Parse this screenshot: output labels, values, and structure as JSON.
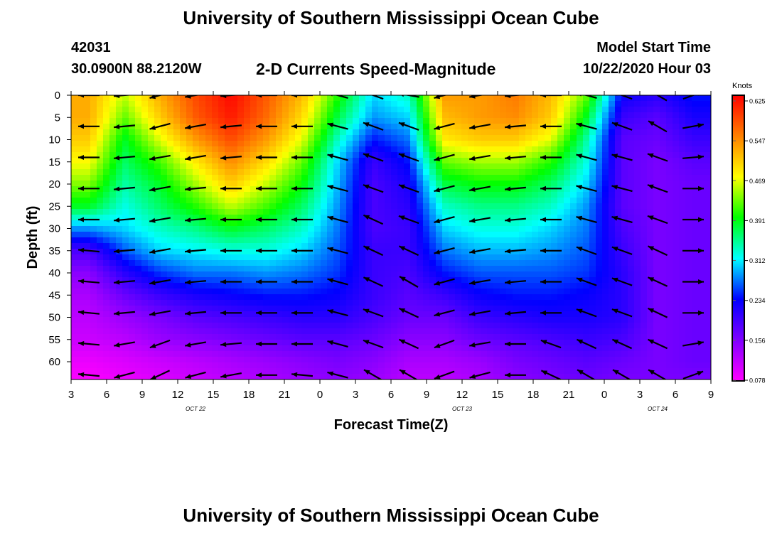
{
  "header": {
    "title": "University of Southern Mississippi Ocean Cube",
    "station_id": "42031",
    "location": "30.0900N 88.2120W",
    "subtitle": "2-D Currents Speed-Magnitude",
    "model_start_label": "Model Start Time",
    "model_start_value": "10/22/2020 Hour 03"
  },
  "footer": {
    "title": "University of Southern Mississippi Ocean Cube"
  },
  "colors": {
    "scale": [
      "#ff00ff",
      "#8000ff",
      "#0000ff",
      "#00ffff",
      "#00ff00",
      "#ffff00",
      "#ff8000",
      "#ff0000"
    ],
    "arrow": "#000000"
  },
  "chart_data": {
    "type": "heatmap",
    "ylabel": "Depth (ft)",
    "xlabel": "Forecast Time(Z)",
    "colorbar_label": "Knots",
    "colorbar_ticks": [
      "0.625",
      "0.547",
      "0.469",
      "0.391",
      "0.312",
      "0.234",
      "0.156",
      "0.078"
    ],
    "colorbar_range": [
      0.078,
      0.625
    ],
    "y_ticks": [
      "0",
      "5",
      "10",
      "15",
      "20",
      "25",
      "30",
      "35",
      "40",
      "45",
      "50",
      "55",
      "60"
    ],
    "y_range": [
      0,
      64
    ],
    "y_inverted": true,
    "x_tick_labels": [
      "3",
      "6",
      "9",
      "12",
      "15",
      "18",
      "21",
      "0",
      "3",
      "6",
      "9",
      "12",
      "15",
      "18",
      "21",
      "0",
      "3",
      "6",
      "9"
    ],
    "x_range_hours": [
      0,
      54
    ],
    "date_labels": [
      {
        "text": "OCT 22",
        "hour": 10.5
      },
      {
        "text": "OCT 23",
        "hour": 33
      },
      {
        "text": "OCT 24",
        "hour": 49.5
      }
    ],
    "times_hours": [
      1.5,
      4.5,
      7.5,
      10.5,
      13.5,
      16.5,
      19.5,
      22.5,
      25.5,
      28.5,
      31.5,
      34.5,
      37.5,
      40.5,
      43.5,
      46.5,
      49.5,
      52.5
    ],
    "depths_ft": [
      0,
      5,
      10,
      15,
      20,
      25,
      30,
      35,
      40,
      45,
      50,
      55,
      60,
      64
    ],
    "speed_knots": [
      [
        0.52,
        0.45,
        0.52,
        0.58,
        0.62,
        0.57,
        0.51,
        0.4,
        0.3,
        0.33,
        0.53,
        0.53,
        0.55,
        0.51,
        0.42,
        0.23,
        0.21,
        0.24
      ],
      [
        0.52,
        0.42,
        0.5,
        0.57,
        0.61,
        0.56,
        0.49,
        0.37,
        0.28,
        0.3,
        0.51,
        0.53,
        0.54,
        0.5,
        0.38,
        0.2,
        0.18,
        0.22
      ],
      [
        0.5,
        0.38,
        0.46,
        0.53,
        0.58,
        0.53,
        0.46,
        0.33,
        0.24,
        0.27,
        0.48,
        0.5,
        0.5,
        0.46,
        0.34,
        0.18,
        0.17,
        0.2
      ],
      [
        0.47,
        0.36,
        0.41,
        0.48,
        0.54,
        0.49,
        0.42,
        0.3,
        0.2,
        0.24,
        0.42,
        0.44,
        0.44,
        0.4,
        0.32,
        0.18,
        0.16,
        0.18
      ],
      [
        0.43,
        0.34,
        0.38,
        0.44,
        0.5,
        0.45,
        0.39,
        0.29,
        0.19,
        0.22,
        0.37,
        0.39,
        0.39,
        0.36,
        0.3,
        0.18,
        0.16,
        0.17
      ],
      [
        0.38,
        0.32,
        0.36,
        0.4,
        0.45,
        0.41,
        0.36,
        0.28,
        0.19,
        0.21,
        0.33,
        0.35,
        0.35,
        0.33,
        0.28,
        0.18,
        0.16,
        0.17
      ],
      [
        0.28,
        0.3,
        0.33,
        0.35,
        0.38,
        0.36,
        0.33,
        0.27,
        0.19,
        0.2,
        0.3,
        0.32,
        0.32,
        0.3,
        0.27,
        0.19,
        0.16,
        0.17
      ],
      [
        0.19,
        0.26,
        0.3,
        0.31,
        0.32,
        0.32,
        0.3,
        0.26,
        0.2,
        0.2,
        0.27,
        0.29,
        0.29,
        0.28,
        0.26,
        0.2,
        0.16,
        0.17
      ],
      [
        0.15,
        0.21,
        0.25,
        0.27,
        0.27,
        0.28,
        0.27,
        0.25,
        0.2,
        0.19,
        0.24,
        0.26,
        0.26,
        0.26,
        0.25,
        0.21,
        0.16,
        0.17
      ],
      [
        0.13,
        0.17,
        0.2,
        0.22,
        0.23,
        0.24,
        0.24,
        0.23,
        0.2,
        0.18,
        0.2,
        0.23,
        0.24,
        0.24,
        0.23,
        0.21,
        0.16,
        0.17
      ],
      [
        0.12,
        0.14,
        0.16,
        0.18,
        0.19,
        0.2,
        0.21,
        0.21,
        0.19,
        0.17,
        0.17,
        0.2,
        0.21,
        0.22,
        0.22,
        0.21,
        0.16,
        0.17
      ],
      [
        0.11,
        0.12,
        0.14,
        0.15,
        0.16,
        0.17,
        0.18,
        0.18,
        0.17,
        0.15,
        0.15,
        0.17,
        0.18,
        0.19,
        0.2,
        0.19,
        0.16,
        0.17
      ],
      [
        0.09,
        0.1,
        0.11,
        0.12,
        0.13,
        0.14,
        0.15,
        0.16,
        0.15,
        0.13,
        0.13,
        0.14,
        0.16,
        0.17,
        0.18,
        0.17,
        0.16,
        0.17
      ],
      [
        0.08,
        0.09,
        0.1,
        0.11,
        0.12,
        0.13,
        0.14,
        0.15,
        0.14,
        0.12,
        0.12,
        0.13,
        0.15,
        0.16,
        0.17,
        0.16,
        0.16,
        0.16
      ]
    ],
    "arrow_hours": [
      1.5,
      4.5,
      7.5,
      10.5,
      13.5,
      16.5,
      19.5,
      22.5,
      25.5,
      28.5,
      31.5,
      34.5,
      37.5,
      40.5,
      43.5,
      46.5,
      49.5,
      52.5
    ],
    "arrow_depths_ft": [
      0,
      7,
      14,
      21,
      28,
      35,
      42,
      49,
      56,
      63
    ],
    "arrow_direction_deg_from_east": [
      [
        180,
        185,
        195,
        190,
        185,
        180,
        180,
        165,
        160,
        170,
        195,
        190,
        185,
        180,
        165,
        160,
        150,
        20
      ],
      [
        180,
        185,
        195,
        190,
        185,
        180,
        180,
        165,
        160,
        160,
        195,
        190,
        185,
        180,
        165,
        160,
        150,
        10
      ],
      [
        180,
        185,
        190,
        190,
        185,
        180,
        180,
        165,
        160,
        160,
        195,
        190,
        185,
        180,
        165,
        165,
        160,
        5
      ],
      [
        180,
        185,
        190,
        185,
        180,
        180,
        180,
        165,
        160,
        160,
        195,
        190,
        185,
        180,
        165,
        165,
        160,
        0
      ],
      [
        180,
        185,
        190,
        185,
        180,
        180,
        180,
        165,
        155,
        160,
        195,
        190,
        185,
        180,
        165,
        165,
        160,
        0
      ],
      [
        175,
        185,
        190,
        185,
        180,
        180,
        180,
        165,
        155,
        155,
        195,
        190,
        185,
        180,
        160,
        160,
        155,
        0
      ],
      [
        175,
        185,
        190,
        185,
        180,
        180,
        180,
        165,
        155,
        150,
        195,
        190,
        185,
        180,
        160,
        160,
        155,
        0
      ],
      [
        175,
        185,
        190,
        185,
        180,
        180,
        180,
        165,
        160,
        155,
        195,
        190,
        185,
        180,
        160,
        160,
        155,
        0
      ],
      [
        175,
        190,
        200,
        190,
        185,
        180,
        180,
        165,
        160,
        155,
        200,
        190,
        180,
        160,
        155,
        155,
        155,
        10
      ],
      [
        175,
        195,
        205,
        195,
        190,
        180,
        175,
        165,
        150,
        150,
        200,
        195,
        180,
        155,
        150,
        150,
        150,
        20
      ]
    ]
  }
}
